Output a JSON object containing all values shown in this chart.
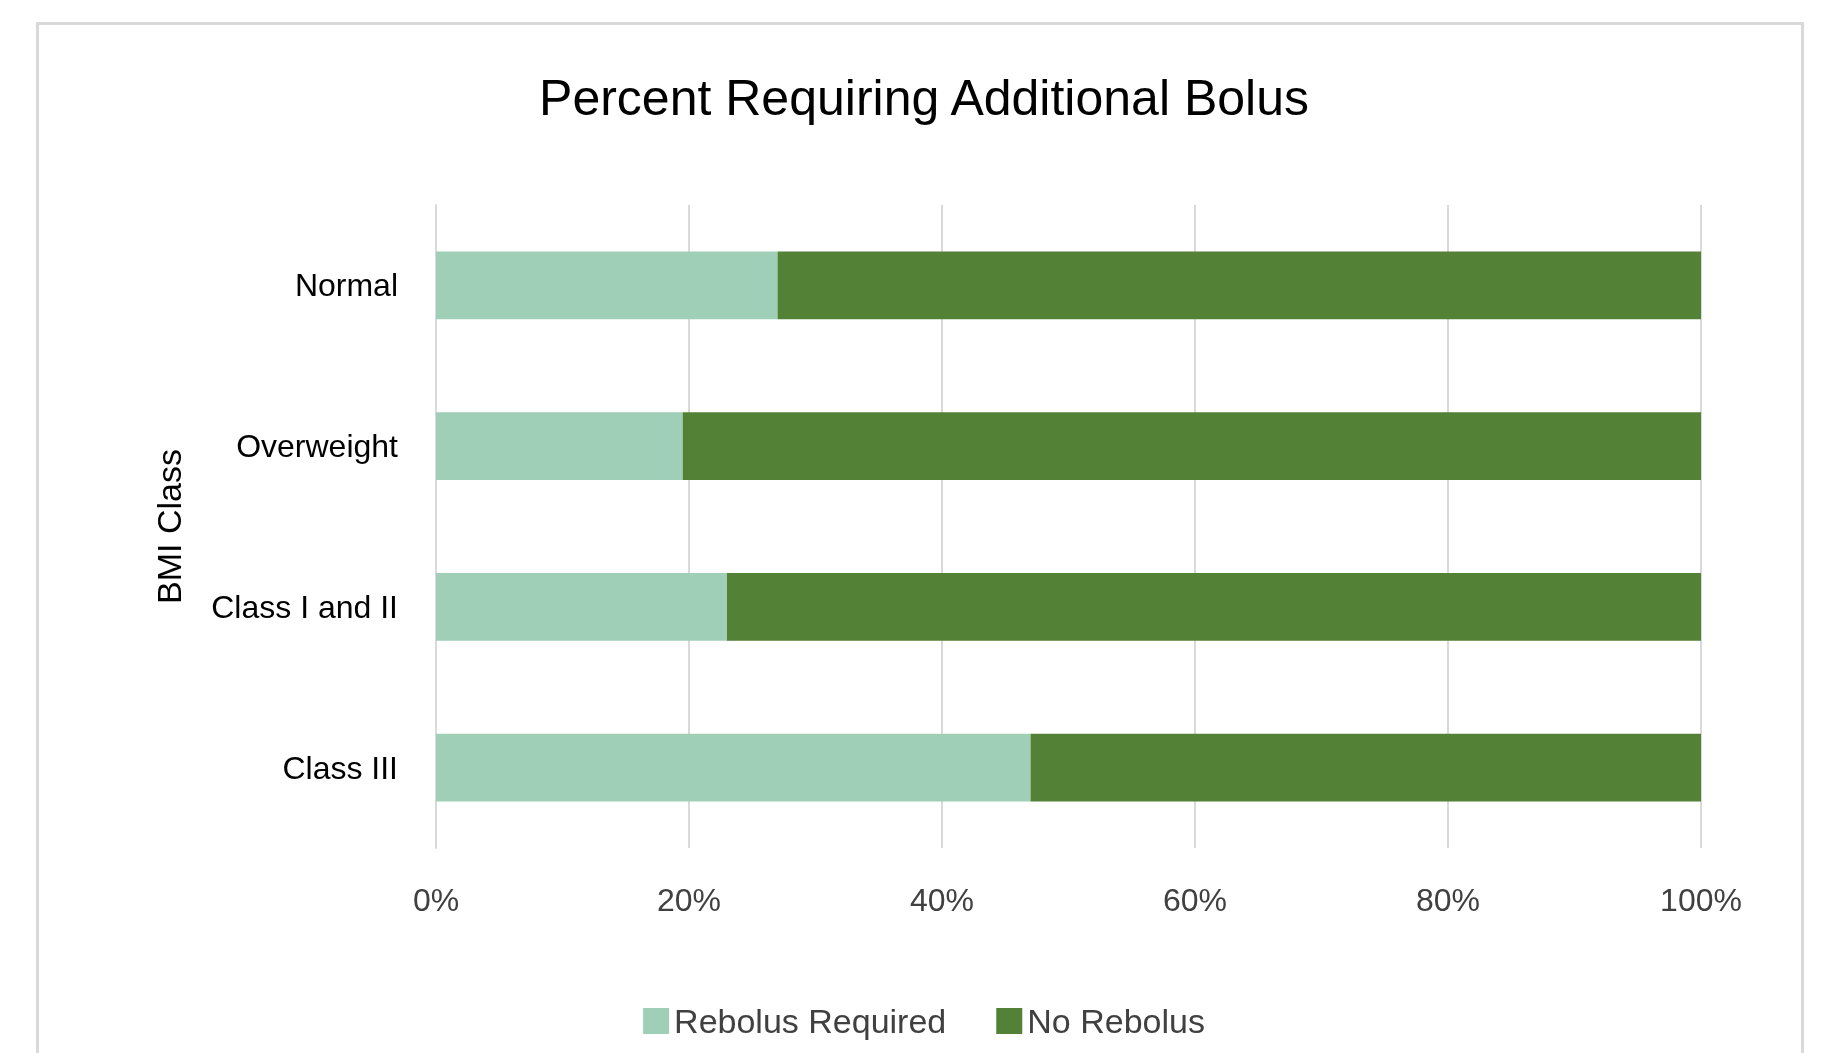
{
  "chart_data": {
    "type": "bar",
    "orientation": "horizontal",
    "stacked": true,
    "title": "Percent Requiring Additional Bolus",
    "ylabel": "BMI Class",
    "categories": [
      "Normal",
      "Overweight",
      "Class I and II",
      "Class III"
    ],
    "series": [
      {
        "name": "Rebolus Required",
        "color": "#9fcfb6",
        "values": [
          27,
          19.5,
          23,
          47
        ]
      },
      {
        "name": "No Rebolus",
        "color": "#538135",
        "values": [
          73,
          80.5,
          77,
          53
        ]
      }
    ],
    "xlim": [
      0,
      100
    ],
    "xticks": [
      {
        "value": 0,
        "label": "0%"
      },
      {
        "value": 20,
        "label": "20%"
      },
      {
        "value": 40,
        "label": "40%"
      },
      {
        "value": 60,
        "label": "60%"
      },
      {
        "value": 80,
        "label": "80%"
      },
      {
        "value": 100,
        "label": "100%"
      }
    ],
    "grid": "x",
    "legend": "bottom"
  }
}
